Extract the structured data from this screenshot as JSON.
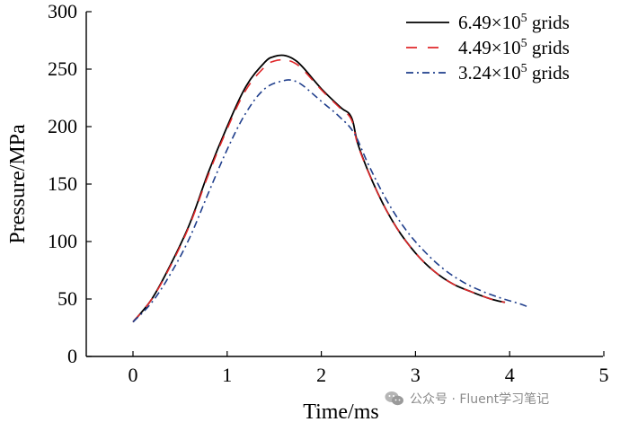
{
  "chart_data": {
    "type": "line",
    "title": "",
    "xlabel": "Time/ms",
    "ylabel": "Pressure/MPa",
    "xlim": [
      0,
      5
    ],
    "ylim": [
      0,
      300
    ],
    "xticks": [
      0,
      1,
      2,
      3,
      4,
      5
    ],
    "yticks": [
      0,
      50,
      100,
      150,
      200,
      250,
      300
    ],
    "xtick_labels": [
      "0",
      "1",
      "2",
      "3",
      "4",
      "5"
    ],
    "ytick_labels": [
      "0",
      "50",
      "100",
      "150",
      "200",
      "250",
      "300"
    ],
    "grid": false,
    "legend_position": "top-right",
    "series": [
      {
        "name": "6.49×10",
        "superscript": "5",
        "suffix": " grids",
        "color": "#000000",
        "dash": "solid",
        "x": [
          0,
          0.2,
          0.4,
          0.6,
          0.8,
          1.0,
          1.2,
          1.4,
          1.5,
          1.6,
          1.7,
          1.8,
          2.0,
          2.2,
          2.32,
          2.4,
          2.6,
          2.8,
          3.0,
          3.2,
          3.4,
          3.6,
          3.8,
          3.95
        ],
        "y": [
          30,
          50,
          80,
          115,
          160,
          200,
          235,
          256,
          261,
          262,
          259,
          252,
          233,
          217,
          208,
          182,
          142,
          112,
          90,
          74,
          63,
          56,
          50,
          47
        ]
      },
      {
        "name": "4.49×10",
        "superscript": "5",
        "suffix": " grids",
        "color": "#e0282a",
        "dash": "dashed",
        "x": [
          0,
          0.2,
          0.4,
          0.6,
          0.8,
          1.0,
          1.2,
          1.4,
          1.5,
          1.6,
          1.7,
          1.8,
          2.0,
          2.2,
          2.32,
          2.4,
          2.6,
          2.8,
          3.0,
          3.2,
          3.4,
          3.6,
          3.8,
          3.95
        ],
        "y": [
          30,
          50,
          79,
          114,
          158,
          198,
          232,
          252,
          257,
          258,
          256,
          250,
          232,
          216,
          206,
          181,
          142,
          112,
          90,
          74,
          63,
          56,
          50,
          47
        ]
      },
      {
        "name": "3.24×10",
        "superscript": "5",
        "suffix": " grids",
        "color": "#1f3e8c",
        "dash": "dashdot",
        "x": [
          0,
          0.2,
          0.4,
          0.6,
          0.8,
          1.0,
          1.2,
          1.4,
          1.6,
          1.7,
          1.8,
          2.0,
          2.2,
          2.35,
          2.5,
          2.7,
          2.9,
          3.1,
          3.3,
          3.5,
          3.7,
          3.9,
          4.1,
          4.2
        ],
        "y": [
          30,
          47,
          72,
          103,
          142,
          180,
          212,
          233,
          240,
          240,
          236,
          222,
          208,
          194,
          167,
          135,
          110,
          91,
          76,
          65,
          57,
          51,
          46,
          43
        ]
      }
    ]
  },
  "watermark": {
    "text": "公众号 · Fluent学习笔记",
    "icon": "wechat-icon"
  }
}
